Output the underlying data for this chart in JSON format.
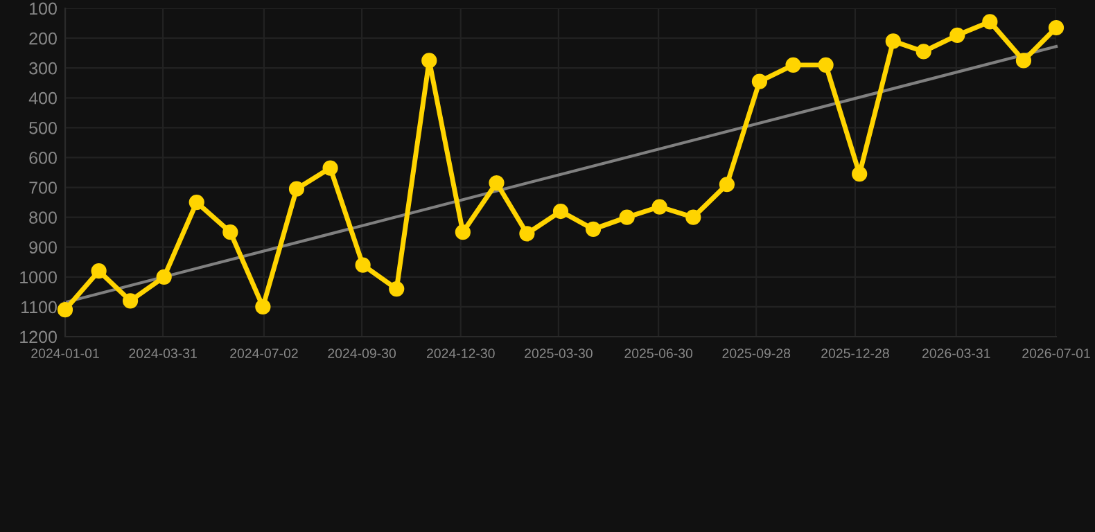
{
  "chart_data": {
    "type": "line",
    "x": [
      "2024-01-01",
      "2024-02-01",
      "2024-03-01",
      "2024-04-01",
      "2024-05-01",
      "2024-06-01",
      "2024-07-01",
      "2024-08-01",
      "2024-09-01",
      "2024-10-01",
      "2024-11-01",
      "2024-12-01",
      "2025-01-01",
      "2025-02-01",
      "2025-03-01",
      "2025-04-01",
      "2025-05-01",
      "2025-06-01",
      "2025-07-01",
      "2025-08-01",
      "2025-09-01",
      "2025-10-01",
      "2025-11-01",
      "2025-12-01",
      "2026-01-01",
      "2026-02-01",
      "2026-03-01",
      "2026-04-01",
      "2026-05-01",
      "2026-06-01",
      "2026-07-01"
    ],
    "series": [
      {
        "color": "#ffd400",
        "marker": "circle",
        "values": [
          1110,
          980,
          1080,
          1000,
          750,
          850,
          1100,
          705,
          635,
          960,
          1040,
          275,
          850,
          685,
          855,
          780,
          840,
          800,
          765,
          800,
          690,
          345,
          290,
          290,
          655,
          210,
          245,
          190,
          145,
          275,
          165
        ]
      },
      {
        "color": "#808080",
        "marker": "none",
        "x": [
          "2024-01-01",
          "2026-07-01"
        ],
        "values": [
          1085,
          228
        ]
      }
    ],
    "xlim": [
      "2024-01-01",
      "2026-07-01"
    ],
    "xticks": [
      "2024-01-01",
      "2024-03-31",
      "2024-07-02",
      "2024-09-30",
      "2024-12-30",
      "2025-03-30",
      "2025-06-30",
      "2025-09-28",
      "2025-12-28",
      "2026-03-31",
      "2026-07-01"
    ],
    "ylim": [
      1200,
      100
    ],
    "yticks": [
      100,
      200,
      300,
      400,
      500,
      600,
      700,
      800,
      900,
      1000,
      1100,
      1200
    ],
    "grid": true,
    "line_style": "solid"
  }
}
